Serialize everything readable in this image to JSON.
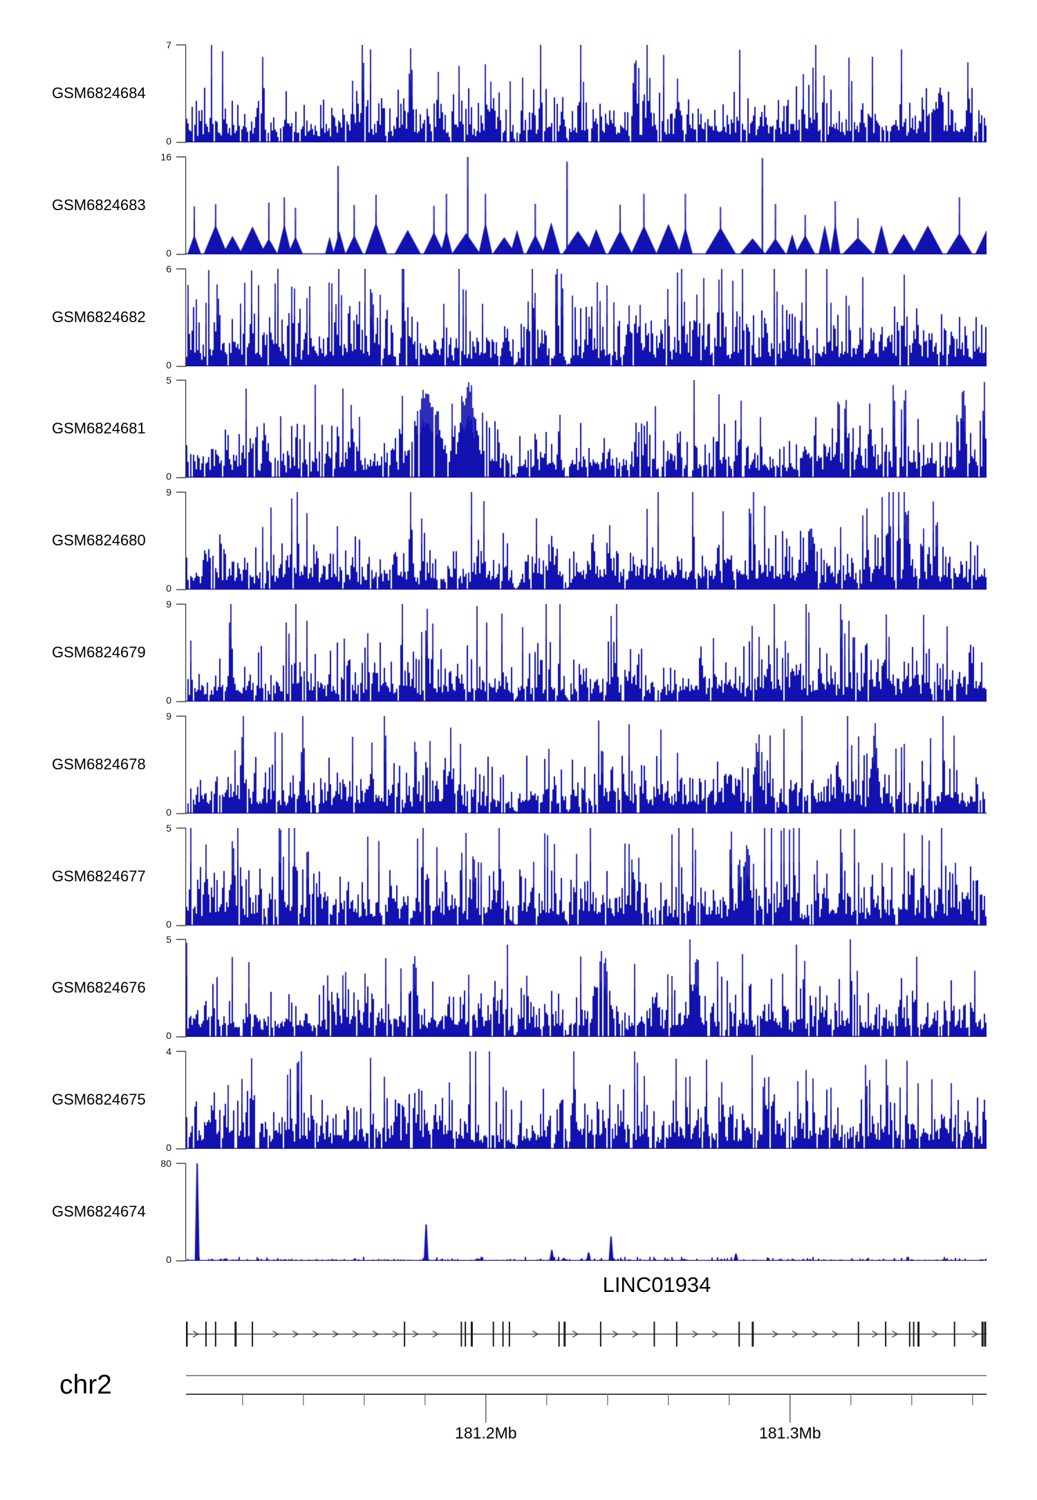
{
  "figure": {
    "bar_color": "#1212b0",
    "spike_color": "#4040c0",
    "axis_gray": "#4a4a4a"
  },
  "chart_data": {
    "type": "area",
    "subtype": "genome-coverage-tracks",
    "title": "LINC01934",
    "region": {
      "chromosome": "chr2",
      "start_mb": 181.1014,
      "end_mb": 181.3646
    },
    "genome_axis": {
      "major_ticks": [
        {
          "mb": 181.2,
          "label": "181.2Mb"
        },
        {
          "mb": 181.3,
          "label": "181.3Mb"
        }
      ],
      "minor_ticks_mb": [
        181.12,
        181.14,
        181.16,
        181.18,
        181.22,
        181.24,
        181.26,
        181.28,
        181.32,
        181.34,
        181.36
      ]
    },
    "shared_dips": [
      {
        "x": 0.411,
        "w": 0.005
      },
      {
        "x": 0.476,
        "w": 0.004
      }
    ],
    "tracks": [
      {
        "label": "GSM6824684",
        "ylim": [
          0,
          7
        ],
        "style": "dense",
        "seed": 11,
        "mean": 0.22,
        "gap": 0.1,
        "spike": 0.012,
        "peaks": [
          {
            "x": 0.28,
            "v": 7,
            "w": 0.002
          },
          {
            "x": 0.56,
            "v": 6.8,
            "w": 0.002
          }
        ]
      },
      {
        "label": "GSM6824683",
        "ylim": [
          0,
          16
        ],
        "style": "triangles",
        "seed": 22,
        "mean": 0.25,
        "gap": 0.13,
        "spike": 0.5,
        "peaks": [
          {
            "x": 0.19,
            "v": 14.5,
            "w": 0.0015
          },
          {
            "x": 0.352,
            "v": 16,
            "w": 0.0015
          },
          {
            "x": 0.476,
            "v": 15.2,
            "w": 0.0015
          },
          {
            "x": 0.72,
            "v": 15.8,
            "w": 0.0015
          }
        ]
      },
      {
        "label": "GSM6824682",
        "ylim": [
          0,
          6
        ],
        "style": "dense",
        "seed": 33,
        "mean": 0.28,
        "gap": 0.06,
        "spike": 0.012,
        "peaks": [
          {
            "x": 0.13,
            "v": 5.9,
            "w": 0.002
          },
          {
            "x": 0.6,
            "v": 5.8,
            "w": 0.002
          }
        ]
      },
      {
        "label": "GSM6824681",
        "ylim": [
          0,
          5
        ],
        "style": "dense",
        "seed": 44,
        "mean": 0.21,
        "gap": 0.1,
        "spike": 0.007,
        "peaks": [
          {
            "x": 0.3,
            "v": 4.6,
            "w": 0.02
          },
          {
            "x": 0.352,
            "v": 5,
            "w": 0.012
          },
          {
            "x": 0.97,
            "v": 4.8,
            "w": 0.003
          }
        ]
      },
      {
        "label": "GSM6824680",
        "ylim": [
          0,
          9
        ],
        "style": "dense",
        "seed": 55,
        "mean": 0.22,
        "gap": 0.07,
        "spike": 0.012,
        "peaks": [
          {
            "x": 0.28,
            "v": 9,
            "w": 0.0015
          },
          {
            "x": 0.9,
            "v": 8.5,
            "w": 0.003
          }
        ]
      },
      {
        "label": "GSM6824679",
        "ylim": [
          0,
          9
        ],
        "style": "dense",
        "seed": 66,
        "mean": 0.22,
        "gap": 0.07,
        "spike": 0.012,
        "peaks": [
          {
            "x": 0.055,
            "v": 9,
            "w": 0.0015
          },
          {
            "x": 0.3,
            "v": 8.5,
            "w": 0.0015
          }
        ]
      },
      {
        "label": "GSM6824678",
        "ylim": [
          0,
          9
        ],
        "style": "dense",
        "seed": 77,
        "mean": 0.22,
        "gap": 0.08,
        "spike": 0.012,
        "peaks": [
          {
            "x": 0.145,
            "v": 9,
            "w": 0.0015
          },
          {
            "x": 0.86,
            "v": 8,
            "w": 0.004
          }
        ]
      },
      {
        "label": "GSM6824677",
        "ylim": [
          0,
          5
        ],
        "style": "dense",
        "seed": 88,
        "mean": 0.3,
        "gap": 0.05,
        "spike": 0.015,
        "peaks": [
          {
            "x": 0.058,
            "v": 5,
            "w": 0.002
          },
          {
            "x": 0.7,
            "v": 5,
            "w": 0.002
          }
        ]
      },
      {
        "label": "GSM6824676",
        "ylim": [
          0,
          5
        ],
        "style": "dense",
        "seed": 99,
        "mean": 0.2,
        "gap": 0.12,
        "spike": 0.006,
        "peaks": [
          {
            "x": 0.285,
            "v": 4.7,
            "w": 0.003
          },
          {
            "x": 0.52,
            "v": 4.5,
            "w": 0.01
          },
          {
            "x": 0.637,
            "v": 5,
            "w": 0.003
          }
        ]
      },
      {
        "label": "GSM6824675",
        "ylim": [
          0,
          4
        ],
        "style": "dense",
        "seed": 110,
        "mean": 0.22,
        "gap": 0.1,
        "spike": 0.008,
        "peaks": [
          {
            "x": 0.28,
            "v": 3.6,
            "w": 0.002
          },
          {
            "x": 0.728,
            "v": 4,
            "w": 0.0015
          }
        ]
      },
      {
        "label": "GSM6824674",
        "ylim": [
          0,
          80
        ],
        "style": "spikes",
        "seed": 121,
        "mean": 0.012,
        "gap": 0.25,
        "spike": 0.0,
        "peaks": [
          {
            "x": 0.014,
            "v": 80,
            "w": 0.001
          },
          {
            "x": 0.3,
            "v": 30,
            "w": 0.001
          },
          {
            "x": 0.457,
            "v": 9,
            "w": 0.001
          },
          {
            "x": 0.503,
            "v": 7,
            "w": 0.001
          },
          {
            "x": 0.531,
            "v": 20,
            "w": 0.001
          },
          {
            "x": 0.687,
            "v": 6,
            "w": 0.001
          }
        ]
      }
    ],
    "gene_track": {
      "gene": "LINC01934",
      "strand": "right",
      "exon_fractions": [
        0,
        0.025,
        0.037,
        0.062,
        0.083,
        0.273,
        0.344,
        0.349,
        0.357,
        0.384,
        0.396,
        0.404,
        0.466,
        0.473,
        0.518,
        0.585,
        0.613,
        0.691,
        0.708,
        0.84,
        0.874,
        0.904,
        0.909,
        0.915,
        0.96,
        0.995,
        1.0
      ]
    },
    "y_axis_zero_label": "0"
  }
}
